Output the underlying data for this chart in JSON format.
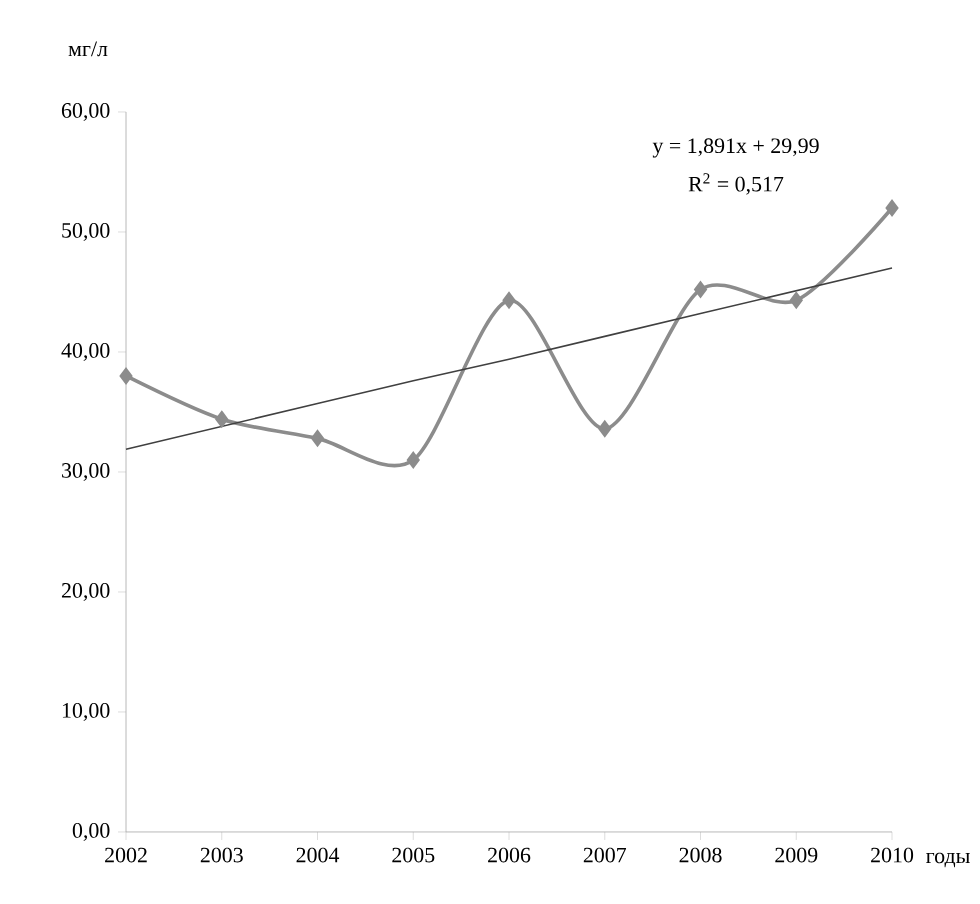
{
  "chart_data": {
    "type": "line",
    "xlabel": "годы",
    "ylabel": "мг/л",
    "categories": [
      "2002",
      "2003",
      "2004",
      "2005",
      "2006",
      "2007",
      "2008",
      "2009",
      "2010"
    ],
    "series": [
      {
        "color": "#8c8c8c",
        "values": [
          38.0,
          34.4,
          32.8,
          31.0,
          44.3,
          33.6,
          45.2,
          44.3,
          52.0
        ],
        "marker": "diamond"
      },
      {
        "type": "line",
        "color": "#404040",
        "values": [
          31.9,
          33.8,
          35.7,
          37.6,
          39.4,
          41.3,
          43.2,
          45.1,
          47.0
        ],
        "marker": "none"
      }
    ],
    "ylim": [
      0,
      60
    ],
    "yticks": [
      {
        "value": 0,
        "label": "0,00"
      },
      {
        "value": 10,
        "label": "10,00"
      },
      {
        "value": 20,
        "label": "20,00"
      },
      {
        "value": 30,
        "label": "30,00"
      },
      {
        "value": 40,
        "label": "40,00"
      },
      {
        "value": 50,
        "label": "50,00"
      },
      {
        "value": 60,
        "label": "60,00"
      }
    ],
    "annotations": [
      "y = 1,891x + 29,99",
      "R$^{2}$ = 0,517"
    ]
  }
}
